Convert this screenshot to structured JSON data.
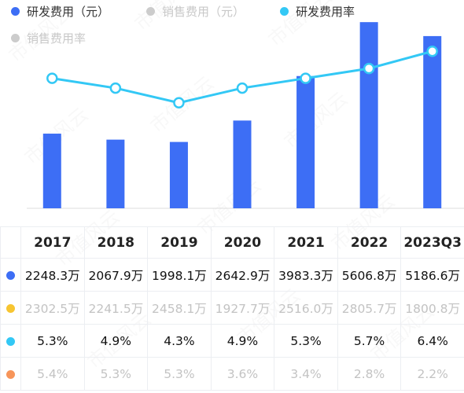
{
  "legend": {
    "items": [
      {
        "label": "研发费用（元）",
        "color": "#3d6ef5",
        "active": true
      },
      {
        "label": "销售费用（元）",
        "color": "#cccccc",
        "active": false
      },
      {
        "label": "研发费用率",
        "color": "#33c8f5",
        "active": true
      },
      {
        "label": "销售费用率",
        "color": "#cccccc",
        "active": false
      }
    ]
  },
  "watermark": "市值风云",
  "chart_data": {
    "type": "bar",
    "categories": [
      "2017",
      "2018",
      "2019",
      "2020",
      "2021",
      "2022",
      "2023Q3"
    ],
    "series": [
      {
        "name": "研发费用（元）",
        "type": "bar",
        "values": [
          2248.3,
          2067.9,
          1998.1,
          2642.9,
          3983.3,
          5606.8,
          5186.6
        ],
        "unit": "万",
        "visible": true
      },
      {
        "name": "销售费用（元）",
        "type": "bar",
        "values": [
          2302.5,
          2241.5,
          2458.1,
          1927.7,
          2516.0,
          2805.7,
          1800.8
        ],
        "unit": "万",
        "visible": false
      },
      {
        "name": "研发费用率",
        "type": "line",
        "values": [
          5.3,
          4.9,
          4.3,
          4.9,
          5.3,
          5.7,
          6.4
        ],
        "unit": "%",
        "visible": true
      },
      {
        "name": "销售费用率",
        "type": "line",
        "values": [
          5.4,
          5.3,
          5.3,
          3.6,
          3.4,
          2.8,
          2.2
        ],
        "unit": "%",
        "visible": false
      }
    ],
    "bar_ylim": [
      0,
      5800
    ],
    "line_ylim": [
      0,
      7.85
    ],
    "grid": false,
    "legend_position": "top-left"
  },
  "table": {
    "rows": [
      {
        "dot_color": "#3d6ef5",
        "style": "strong",
        "cells": [
          "2248.3万",
          "2067.9万",
          "1998.1万",
          "2642.9万",
          "3983.3万",
          "5606.8万",
          "5186.6万"
        ]
      },
      {
        "dot_color": "#f7c531",
        "style": "faded",
        "cells": [
          "2302.5万",
          "2241.5万",
          "2458.1万",
          "1927.7万",
          "2516.0万",
          "2805.7万",
          "1800.8万"
        ]
      },
      {
        "dot_color": "#33c8f5",
        "style": "strong",
        "cells": [
          "5.3%",
          "4.9%",
          "4.3%",
          "4.9%",
          "5.3%",
          "5.7%",
          "6.4%"
        ]
      },
      {
        "dot_color": "#f7955a",
        "style": "faded",
        "cells": [
          "5.4%",
          "5.3%",
          "5.3%",
          "3.6%",
          "3.4%",
          "2.8%",
          "2.2%"
        ]
      }
    ]
  }
}
